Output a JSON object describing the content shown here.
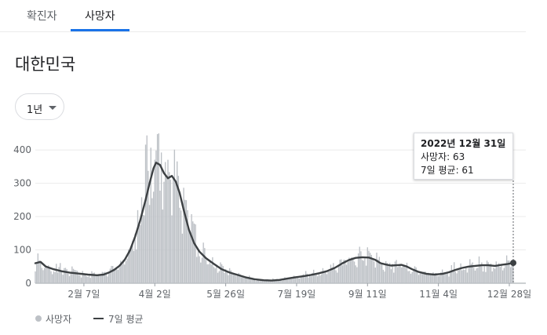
{
  "tabs": [
    {
      "label": "확진자"
    },
    {
      "label": "사망자"
    }
  ],
  "region_title": "대한민국",
  "range_selector": {
    "label": "1년"
  },
  "tooltip": {
    "date": "2022년 12월 31일",
    "deaths_line": "사망자: 63",
    "avg_line": "7일 평균: 61"
  },
  "legend": {
    "deaths": "사망자",
    "avg": "7일 평균"
  },
  "colors": {
    "bar": "#bdc1c6",
    "line": "#3c4043",
    "tab_accent": "#1a73e8"
  },
  "chart_data": {
    "type": "bar",
    "y_ticks": [
      0,
      100,
      200,
      300,
      400
    ],
    "ylim": [
      0,
      450
    ],
    "x_tick_labels": [
      "2월 7일",
      "4월 2일",
      "5월 26일",
      "7월 19일",
      "9월 11일",
      "11월 4일",
      "12월 28일"
    ],
    "x_tick_day_index": [
      37,
      91,
      145,
      199,
      253,
      307,
      361
    ],
    "x_day_count": 365,
    "start_date": "2022-01-01",
    "series": [
      {
        "name": "사망자",
        "kind": "daily_bars",
        "value_on_2022-12-31": 63
      },
      {
        "name": "7일 평균",
        "kind": "line",
        "points": [
          [
            0,
            60
          ],
          [
            4,
            64
          ],
          [
            8,
            50
          ],
          [
            14,
            42
          ],
          [
            20,
            36
          ],
          [
            26,
            32
          ],
          [
            33,
            29
          ],
          [
            40,
            26
          ],
          [
            47,
            24
          ],
          [
            52,
            26
          ],
          [
            56,
            32
          ],
          [
            60,
            40
          ],
          [
            64,
            52
          ],
          [
            68,
            70
          ],
          [
            72,
            98
          ],
          [
            76,
            140
          ],
          [
            80,
            190
          ],
          [
            84,
            250
          ],
          [
            87,
            300
          ],
          [
            90,
            345
          ],
          [
            92,
            362
          ],
          [
            95,
            355
          ],
          [
            98,
            330
          ],
          [
            101,
            315
          ],
          [
            104,
            322
          ],
          [
            107,
            305
          ],
          [
            110,
            270
          ],
          [
            113,
            220
          ],
          [
            117,
            160
          ],
          [
            121,
            120
          ],
          [
            125,
            95
          ],
          [
            130,
            75
          ],
          [
            136,
            58
          ],
          [
            142,
            42
          ],
          [
            148,
            32
          ],
          [
            154,
            25
          ],
          [
            160,
            18
          ],
          [
            167,
            12
          ],
          [
            174,
            9
          ],
          [
            180,
            8
          ],
          [
            186,
            10
          ],
          [
            192,
            14
          ],
          [
            198,
            18
          ],
          [
            204,
            21
          ],
          [
            210,
            25
          ],
          [
            216,
            30
          ],
          [
            222,
            36
          ],
          [
            228,
            46
          ],
          [
            234,
            60
          ],
          [
            239,
            70
          ],
          [
            244,
            76
          ],
          [
            249,
            78
          ],
          [
            254,
            77
          ],
          [
            259,
            70
          ],
          [
            263,
            60
          ],
          [
            267,
            56
          ],
          [
            271,
            53
          ],
          [
            275,
            54
          ],
          [
            279,
            55
          ],
          [
            283,
            50
          ],
          [
            287,
            42
          ],
          [
            292,
            34
          ],
          [
            298,
            28
          ],
          [
            304,
            26
          ],
          [
            310,
            28
          ],
          [
            315,
            33
          ],
          [
            320,
            40
          ],
          [
            325,
            46
          ],
          [
            330,
            50
          ],
          [
            335,
            52
          ],
          [
            340,
            54
          ],
          [
            345,
            54
          ],
          [
            350,
            52
          ],
          [
            355,
            55
          ],
          [
            360,
            58
          ],
          [
            364,
            61
          ]
        ]
      }
    ]
  }
}
